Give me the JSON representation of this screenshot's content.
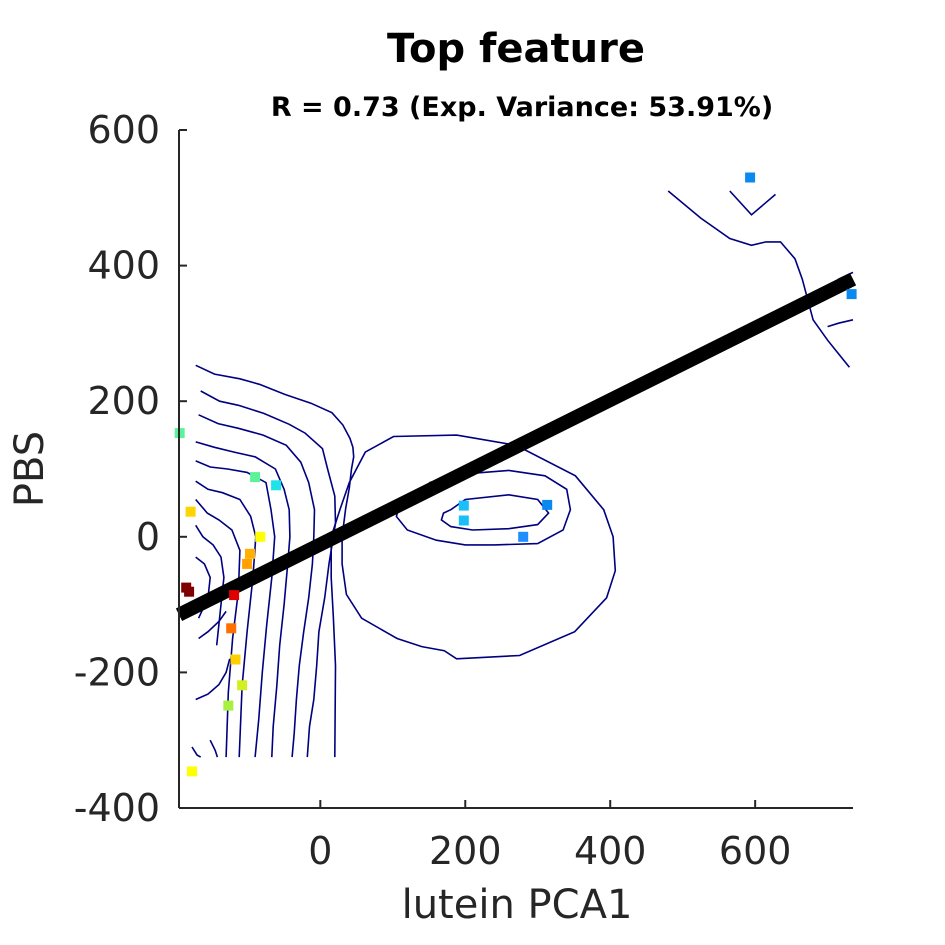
{
  "chart_data": {
    "type": "scatter",
    "title": "Top feature",
    "subtitle": "R = 0.73 (Exp. Variance: 53.91%)",
    "xlabel": "lutein PCA1",
    "ylabel": "PBS",
    "xlim": [
      -195,
      735
    ],
    "ylim": [
      -400,
      600
    ],
    "xticks": [
      0,
      200,
      400,
      600
    ],
    "yticks": [
      -400,
      -200,
      0,
      200,
      400,
      600
    ],
    "xtick_labels": [
      "0",
      "200",
      "400",
      "600"
    ],
    "ytick_labels": [
      "-400",
      "-200",
      "0",
      "200",
      "400",
      "600"
    ],
    "grid": false,
    "legend": "none",
    "marker": "square",
    "points": [
      {
        "x": 593,
        "y": 530,
        "color": "#0a8af0"
      },
      {
        "x": 733,
        "y": 358,
        "color": "#0a8af0"
      },
      {
        "x": 313,
        "y": 47,
        "color": "#0a8af0"
      },
      {
        "x": 280,
        "y": 0,
        "color": "#1e8eff"
      },
      {
        "x": 198,
        "y": 46,
        "color": "#19c0f8"
      },
      {
        "x": 198,
        "y": 24,
        "color": "#19c0f8"
      },
      {
        "x": -61,
        "y": 76,
        "color": "#1ce4e8"
      },
      {
        "x": -90,
        "y": 88,
        "color": "#5cf29a"
      },
      {
        "x": -194,
        "y": 153,
        "color": "#5cf29a"
      },
      {
        "x": -179,
        "y": 37,
        "color": "#ffd400"
      },
      {
        "x": -83,
        "y": 0,
        "color": "#ffff00"
      },
      {
        "x": -97,
        "y": -25,
        "color": "#ffb000"
      },
      {
        "x": -101,
        "y": -40,
        "color": "#ffa000"
      },
      {
        "x": -185,
        "y": -75,
        "color": "#800000"
      },
      {
        "x": -181,
        "y": -81,
        "color": "#800000"
      },
      {
        "x": -119,
        "y": -86,
        "color": "#e00000"
      },
      {
        "x": -123,
        "y": -135,
        "color": "#ff7000"
      },
      {
        "x": -117,
        "y": -181,
        "color": "#ffd000"
      },
      {
        "x": -108,
        "y": -219,
        "color": "#d2f020"
      },
      {
        "x": -127,
        "y": -249,
        "color": "#a8f040"
      },
      {
        "x": -177,
        "y": -346,
        "color": "#ffff00"
      }
    ],
    "fit_line": {
      "x": [
        -195,
        735
      ],
      "y": [
        -115,
        380
      ],
      "color": "#000000"
    },
    "contours": [
      {
        "x": [
          -172,
          -146,
          -111,
          -84,
          -49,
          -13,
          16,
          31,
          41,
          45,
          46,
          43,
          40,
          35,
          30,
          30,
          36,
          57,
          106,
          140,
          171,
          188,
          275,
          351,
          395,
          407,
          404,
          391,
          352,
          270,
          188,
          101,
          62,
          40,
          27,
          15,
          15,
          18,
          21,
          20
        ],
        "y": [
          253,
          240,
          233,
          225,
          210,
          197,
          183,
          165,
          145,
          132,
          118,
          100,
          72,
          42,
          0,
          -40,
          -85,
          -120,
          -150,
          -162,
          -168,
          -180,
          -175,
          -140,
          -90,
          -50,
          0,
          40,
          90,
          135,
          150,
          148,
          125,
          80,
          40,
          0,
          -60,
          -120,
          -190,
          -325
        ],
        "color": "#000080"
      },
      {
        "x": [
          -165,
          -139,
          -113,
          -78,
          -43,
          -21,
          3,
          10,
          20,
          21,
          12,
          6,
          -2,
          -5,
          -9,
          -15,
          -18
        ],
        "y": [
          215,
          200,
          194,
          182,
          166,
          153,
          130,
          100,
          60,
          20,
          -40,
          -90,
          -140,
          -190,
          -240,
          -280,
          -325
        ],
        "color": "#000080"
      },
      {
        "x": [
          -168,
          -141,
          -113,
          -79,
          -47,
          -27,
          -16,
          -8,
          -9,
          -11,
          -16,
          -23,
          -29,
          -33,
          -36,
          -39
        ],
        "y": [
          180,
          167,
          160,
          150,
          135,
          110,
          80,
          40,
          0,
          -40,
          -90,
          -140,
          -190,
          -240,
          -290,
          -325
        ],
        "color": "#000080"
      },
      {
        "x": [
          -172,
          -146,
          -119,
          -90,
          -62,
          -50,
          -43,
          -42,
          -45,
          -50,
          -56,
          -60,
          -65,
          -67
        ],
        "y": [
          140,
          132,
          125,
          118,
          100,
          70,
          40,
          0,
          -40,
          -100,
          -160,
          -220,
          -280,
          -325
        ],
        "color": "#000080"
      },
      {
        "x": [
          -172,
          -152,
          -128,
          -101,
          -75,
          -68,
          -63,
          -67,
          -74,
          -80,
          -85,
          -90
        ],
        "y": [
          112,
          103,
          100,
          95,
          80,
          40,
          0,
          -60,
          -130,
          -200,
          -270,
          -325
        ],
        "color": "#000080"
      },
      {
        "x": [
          -172,
          -155,
          -135,
          -111,
          -96,
          -89,
          -93,
          -101,
          -108,
          -112
        ],
        "y": [
          82,
          70,
          65,
          55,
          30,
          0,
          -60,
          -140,
          -220,
          -325
        ],
        "color": "#000080"
      },
      {
        "x": [
          -172,
          -156,
          -140,
          -122,
          -111,
          -113,
          -121,
          -127,
          -130
        ],
        "y": [
          55,
          35,
          25,
          10,
          -20,
          -80,
          -150,
          -230,
          -325
        ],
        "color": "#000080"
      },
      {
        "x": [
          -172,
          -162,
          -148,
          -137,
          -133,
          -137,
          -143
        ],
        "y": [
          17,
          0,
          -12,
          -30,
          -60,
          -100,
          -160
        ],
        "color": "#000080"
      },
      {
        "x": [
          -172,
          -160,
          -152,
          -155,
          -168
        ],
        "y": [
          -30,
          -40,
          -60,
          -90,
          -120
        ],
        "color": "#000080"
      },
      {
        "x": [
          -168,
          -155,
          -140,
          -130
        ],
        "y": [
          -150,
          -140,
          -125,
          -110
        ],
        "color": "#000080"
      },
      {
        "x": [
          -172,
          -155,
          -140,
          -130,
          -125
        ],
        "y": [
          -240,
          -232,
          -218,
          -200,
          -180
        ],
        "color": "#000080"
      },
      {
        "x": [
          -177,
          -170,
          -165
        ],
        "y": [
          -310,
          -322,
          -325
        ],
        "color": "#000080"
      },
      {
        "x": [
          -152,
          -145,
          -142
        ],
        "y": [
          -300,
          -315,
          -325
        ],
        "color": "#000080"
      },
      {
        "x": [
          133,
          151,
          190,
          260,
          310,
          340,
          345,
          335,
          300,
          240,
          200,
          160,
          120,
          105,
          110,
          133
        ],
        "y": [
          60,
          80,
          92,
          98,
          90,
          70,
          40,
          10,
          -10,
          -12,
          -12,
          -5,
          10,
          30,
          50,
          60
        ],
        "color": "#000080"
      },
      {
        "x": [
          180,
          200,
          260,
          300,
          315,
          300,
          260,
          210,
          180,
          167,
          170,
          180
        ],
        "y": [
          40,
          55,
          62,
          55,
          35,
          18,
          12,
          10,
          15,
          25,
          35,
          40
        ],
        "color": "#000080"
      },
      {
        "x": [
          480,
          525,
          565,
          595,
          615,
          635,
          655,
          665,
          680,
          700,
          715,
          730
        ],
        "y": [
          510,
          470,
          440,
          430,
          435,
          435,
          410,
          380,
          320,
          290,
          270,
          250
        ],
        "color": "#000080"
      },
      {
        "x": [
          565,
          595,
          628
        ],
        "y": [
          510,
          475,
          505
        ],
        "color": "#000080"
      },
      {
        "x": [
          695,
          715,
          735
        ],
        "y": [
          360,
          380,
          390
        ],
        "color": "#000080"
      },
      {
        "x": [
          700,
          715,
          735
        ],
        "y": [
          310,
          315,
          320
        ],
        "color": "#000080"
      }
    ]
  }
}
